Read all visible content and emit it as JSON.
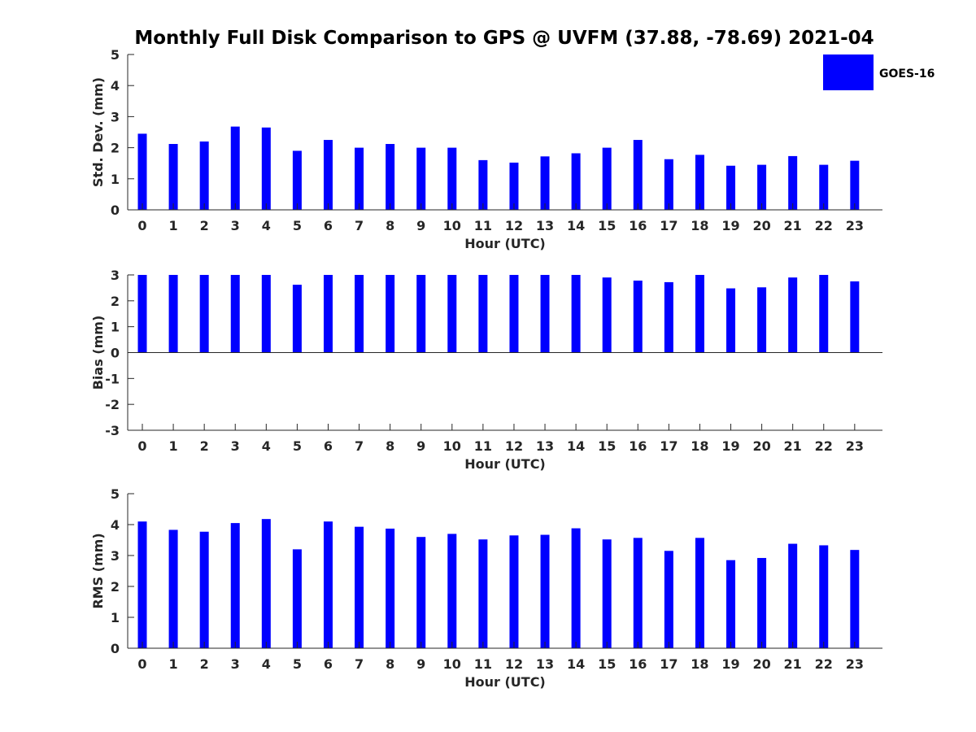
{
  "chart_data": {
    "title": "Monthly Full Disk Comparison to GPS @ UVFM (37.88, -78.69) 2021-04",
    "legend": {
      "label": "GOES-16",
      "color": "#0000ff",
      "placement": "top-right"
    },
    "panels": [
      {
        "type": "bar",
        "ylabel": "Std. Dev. (mm)",
        "xlabel": "Hour (UTC)",
        "ylim": [
          0,
          5
        ],
        "yticks": [
          0,
          1,
          2,
          3,
          4,
          5
        ],
        "categories": [
          0,
          1,
          2,
          3,
          4,
          5,
          6,
          7,
          8,
          9,
          10,
          11,
          12,
          13,
          14,
          15,
          16,
          17,
          18,
          19,
          20,
          21,
          22,
          23
        ],
        "values": [
          2.45,
          2.12,
          2.2,
          2.68,
          2.65,
          1.9,
          2.25,
          2.0,
          2.12,
          2.0,
          2.0,
          1.6,
          1.52,
          1.72,
          1.82,
          2.0,
          2.25,
          1.63,
          1.77,
          1.42,
          1.45,
          1.73,
          1.45,
          1.58
        ],
        "color": "#0000ff"
      },
      {
        "type": "bar",
        "ylabel": "Bias (mm)",
        "xlabel": "Hour (UTC)",
        "ylim": [
          -3,
          3
        ],
        "yticks": [
          -3,
          -2,
          -1,
          0,
          1,
          2,
          3
        ],
        "categories": [
          0,
          1,
          2,
          3,
          4,
          5,
          6,
          7,
          8,
          9,
          10,
          11,
          12,
          13,
          14,
          15,
          16,
          17,
          18,
          19,
          20,
          21,
          22,
          23
        ],
        "values": [
          3.0,
          3.0,
          3.0,
          3.0,
          3.0,
          2.62,
          3.0,
          3.0,
          3.0,
          3.0,
          3.0,
          3.0,
          3.0,
          3.0,
          3.0,
          2.9,
          2.78,
          2.72,
          3.0,
          2.48,
          2.52,
          2.9,
          3.0,
          2.75
        ],
        "color": "#0000ff"
      },
      {
        "type": "bar",
        "ylabel": "RMS (mm)",
        "xlabel": "Hour (UTC)",
        "ylim": [
          0,
          5
        ],
        "yticks": [
          0,
          1,
          2,
          3,
          4,
          5
        ],
        "categories": [
          0,
          1,
          2,
          3,
          4,
          5,
          6,
          7,
          8,
          9,
          10,
          11,
          12,
          13,
          14,
          15,
          16,
          17,
          18,
          19,
          20,
          21,
          22,
          23
        ],
        "values": [
          4.1,
          3.83,
          3.77,
          4.05,
          4.18,
          3.2,
          4.1,
          3.93,
          3.87,
          3.6,
          3.7,
          3.52,
          3.65,
          3.67,
          3.88,
          3.52,
          3.57,
          3.15,
          3.57,
          2.85,
          2.92,
          3.38,
          3.33,
          3.18
        ],
        "color": "#0000ff"
      }
    ]
  }
}
